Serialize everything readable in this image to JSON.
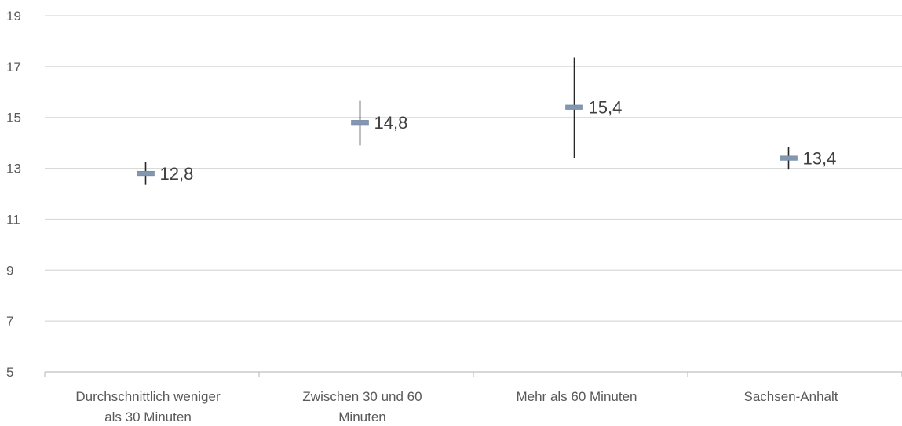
{
  "chart_data": {
    "type": "scatter",
    "categories": [
      [
        "Durchschnittlich weniger",
        "als 30 Minuten"
      ],
      [
        "Zwischen 30 und 60",
        "Minuten"
      ],
      [
        "Mehr als 60 Minuten"
      ],
      [
        "Sachsen-Anhalt"
      ]
    ],
    "values": [
      12.8,
      14.8,
      15.4,
      13.4
    ],
    "value_labels": [
      "12,8",
      "14,8",
      "15,4",
      "13,4"
    ],
    "error_low": [
      12.35,
      13.9,
      13.4,
      12.95
    ],
    "error_high": [
      13.25,
      15.65,
      17.35,
      13.85
    ],
    "y_ticks": [
      5,
      7,
      9,
      11,
      13,
      15,
      17,
      19
    ],
    "ylim": [
      5,
      19
    ],
    "title": "",
    "xlabel": "",
    "ylabel": "",
    "grid": true,
    "colors": {
      "marker": "#8497b0",
      "error_bar": "#262626",
      "grid": "#d9d9d9",
      "axis": "#bfbfbf"
    }
  }
}
